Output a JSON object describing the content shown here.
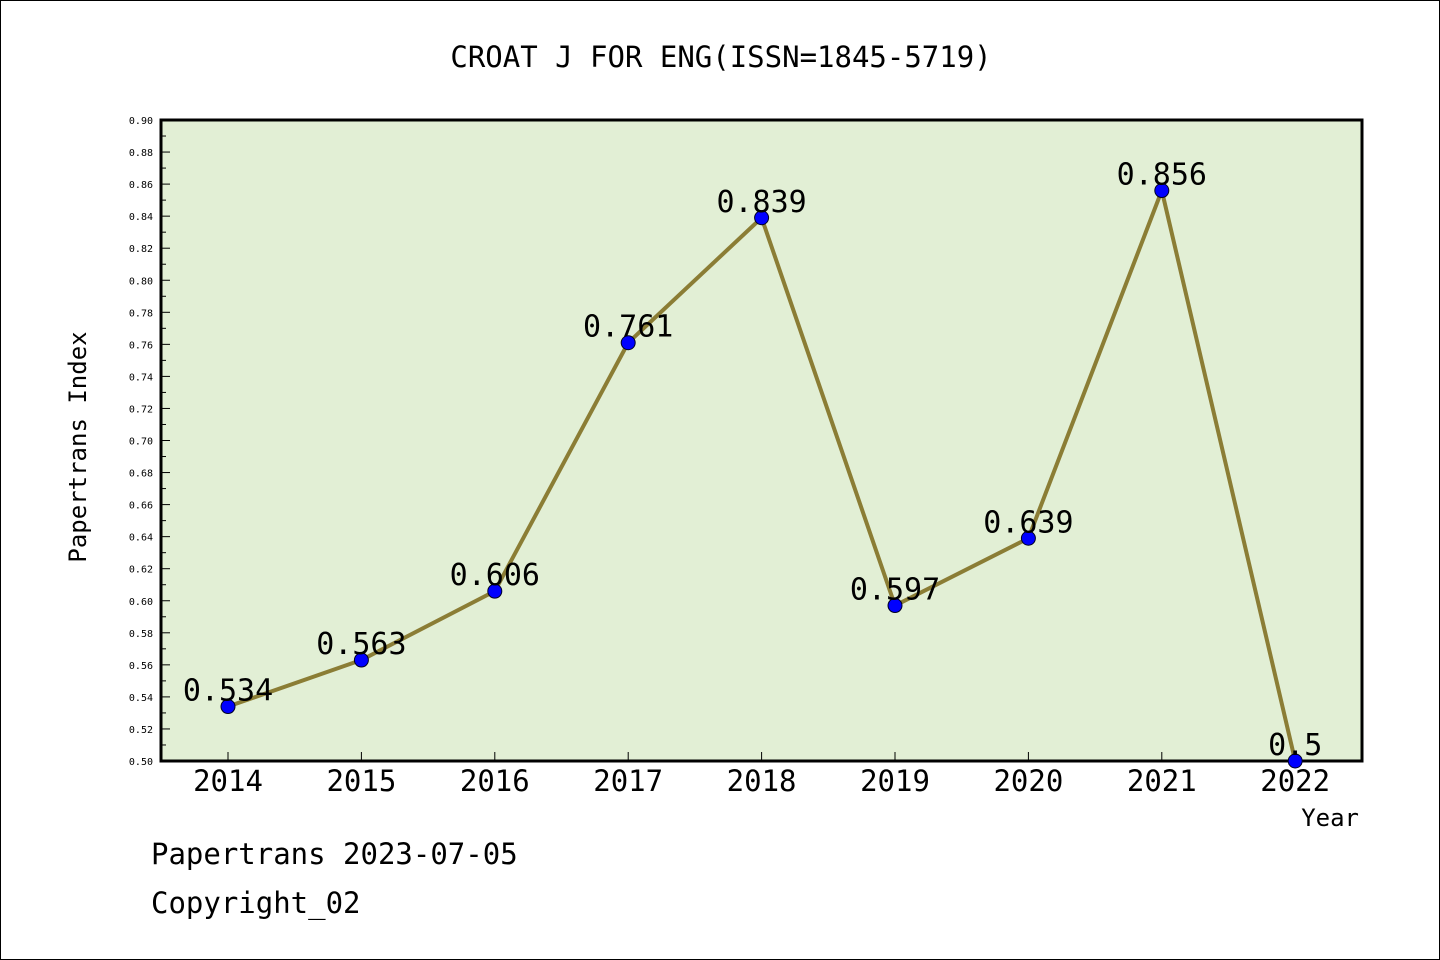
{
  "chart_data": {
    "type": "line",
    "title": "CROAT J FOR ENG(ISSN=1845-5719)",
    "xlabel": "Year",
    "ylabel": "Papertrans Index",
    "categories": [
      "2014",
      "2015",
      "2016",
      "2017",
      "2018",
      "2019",
      "2020",
      "2021",
      "2022"
    ],
    "series": [
      {
        "values": [
          0.534,
          0.563,
          0.606,
          0.761,
          0.839,
          0.597,
          0.639,
          0.856,
          0.5
        ]
      }
    ],
    "data_labels": [
      "0.534",
      "0.563",
      "0.606",
      "0.761",
      "0.839",
      "0.597",
      "0.639",
      "0.856",
      "0.5"
    ],
    "ylim": [
      0.5,
      0.9
    ],
    "yticks": [
      "0.50",
      "0.52",
      "0.54",
      "0.56",
      "0.58",
      "0.60",
      "0.62",
      "0.64",
      "0.66",
      "0.68",
      "0.70",
      "0.72",
      "0.74",
      "0.76",
      "0.78",
      "0.80",
      "0.82",
      "0.84",
      "0.86",
      "0.88",
      "0.90"
    ],
    "grid": false,
    "colors": {
      "plot_background": "#e2efd5",
      "line": "#8b7d35",
      "marker": "#0000ff"
    }
  },
  "footer": {
    "date_line": "Papertrans 2023-07-05",
    "copyright": "Copyright_02"
  }
}
